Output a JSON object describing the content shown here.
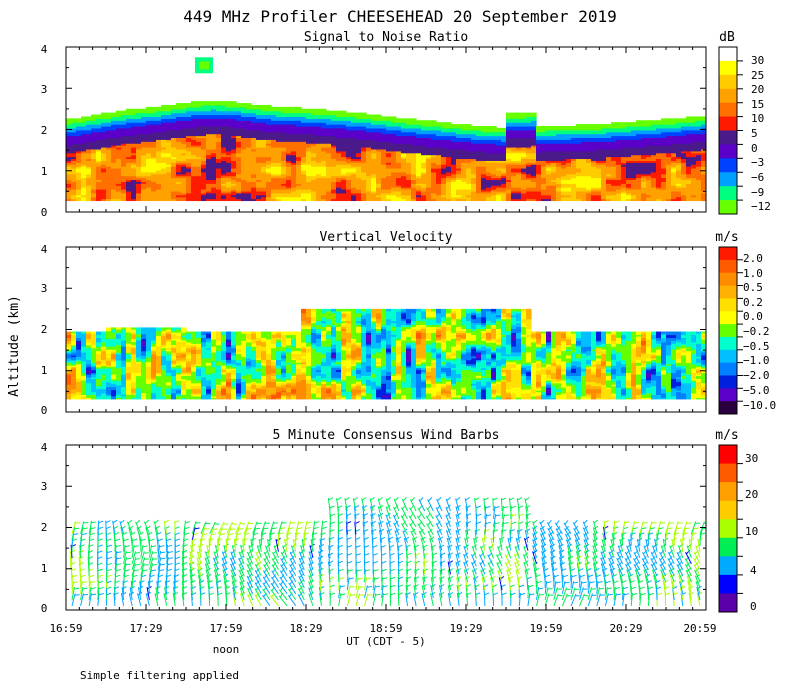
{
  "title": "449 MHz Profiler CHEESEHEAD 20 September 2019",
  "ylabel": "Altitude (km)",
  "xlabel": "UT  (CDT - 5)",
  "noon_label": "noon",
  "footnote": "Simple filtering applied",
  "x_tick_labels": [
    "16:59",
    "17:29",
    "17:59",
    "18:29",
    "18:59",
    "19:29",
    "19:59",
    "20:29",
    "20:59"
  ],
  "chart_data": [
    {
      "type": "heatmap",
      "title": "Signal to Noise Ratio",
      "unit": "dB",
      "xlim": [
        16.983,
        20.983
      ],
      "ylim": [
        0,
        4
      ],
      "yticks": [
        "0",
        "1",
        "2",
        "3",
        "4"
      ],
      "colorbar_labels": [
        "30",
        "25",
        "20",
        "15",
        "10",
        "5",
        "0",
        "−3",
        "−6",
        "−9",
        "−12"
      ],
      "colors": [
        "#ffffff",
        "#ffff00",
        "#ffcc00",
        "#ffa200",
        "#ff7000",
        "#ff1a00",
        "#4a1a8a",
        "#5a00c8",
        "#0040ff",
        "#00a0ff",
        "#00ff80",
        "#66ff00"
      ]
    },
    {
      "type": "heatmap",
      "title": "Vertical Velocity",
      "unit": "m/s",
      "xlim": [
        16.983,
        20.983
      ],
      "ylim": [
        0,
        4
      ],
      "yticks": [
        "0",
        "1",
        "2",
        "3",
        "4"
      ],
      "colorbar_labels": [
        "2.0",
        "1.0",
        "0.5",
        "0.2",
        "0.0",
        "−0.2",
        "−0.5",
        "−1.0",
        "−2.0",
        "−5.0",
        "−10.0"
      ],
      "colors": [
        "#ff1a00",
        "#ff5a00",
        "#ff8c00",
        "#ffb000",
        "#ffe000",
        "#ffff00",
        "#66ff00",
        "#00ffcc",
        "#00c0ff",
        "#0080ff",
        "#0020e0",
        "#5a00c8",
        "#2a0040"
      ]
    },
    {
      "type": "scatter",
      "title": "5 Minute Consensus Wind Barbs",
      "unit": "m/s",
      "xlim": [
        16.983,
        20.983
      ],
      "ylim": [
        0,
        4
      ],
      "yticks": [
        "0",
        "1",
        "2",
        "3",
        "4"
      ],
      "colorbar_labels": [
        "30",
        "20",
        "10",
        "4",
        "0"
      ],
      "colors": [
        "#ff0000",
        "#ff5a00",
        "#ffa000",
        "#ffcc00",
        "#aaff00",
        "#00ee55",
        "#00aaff",
        "#0000ff",
        "#5a00aa"
      ]
    }
  ]
}
